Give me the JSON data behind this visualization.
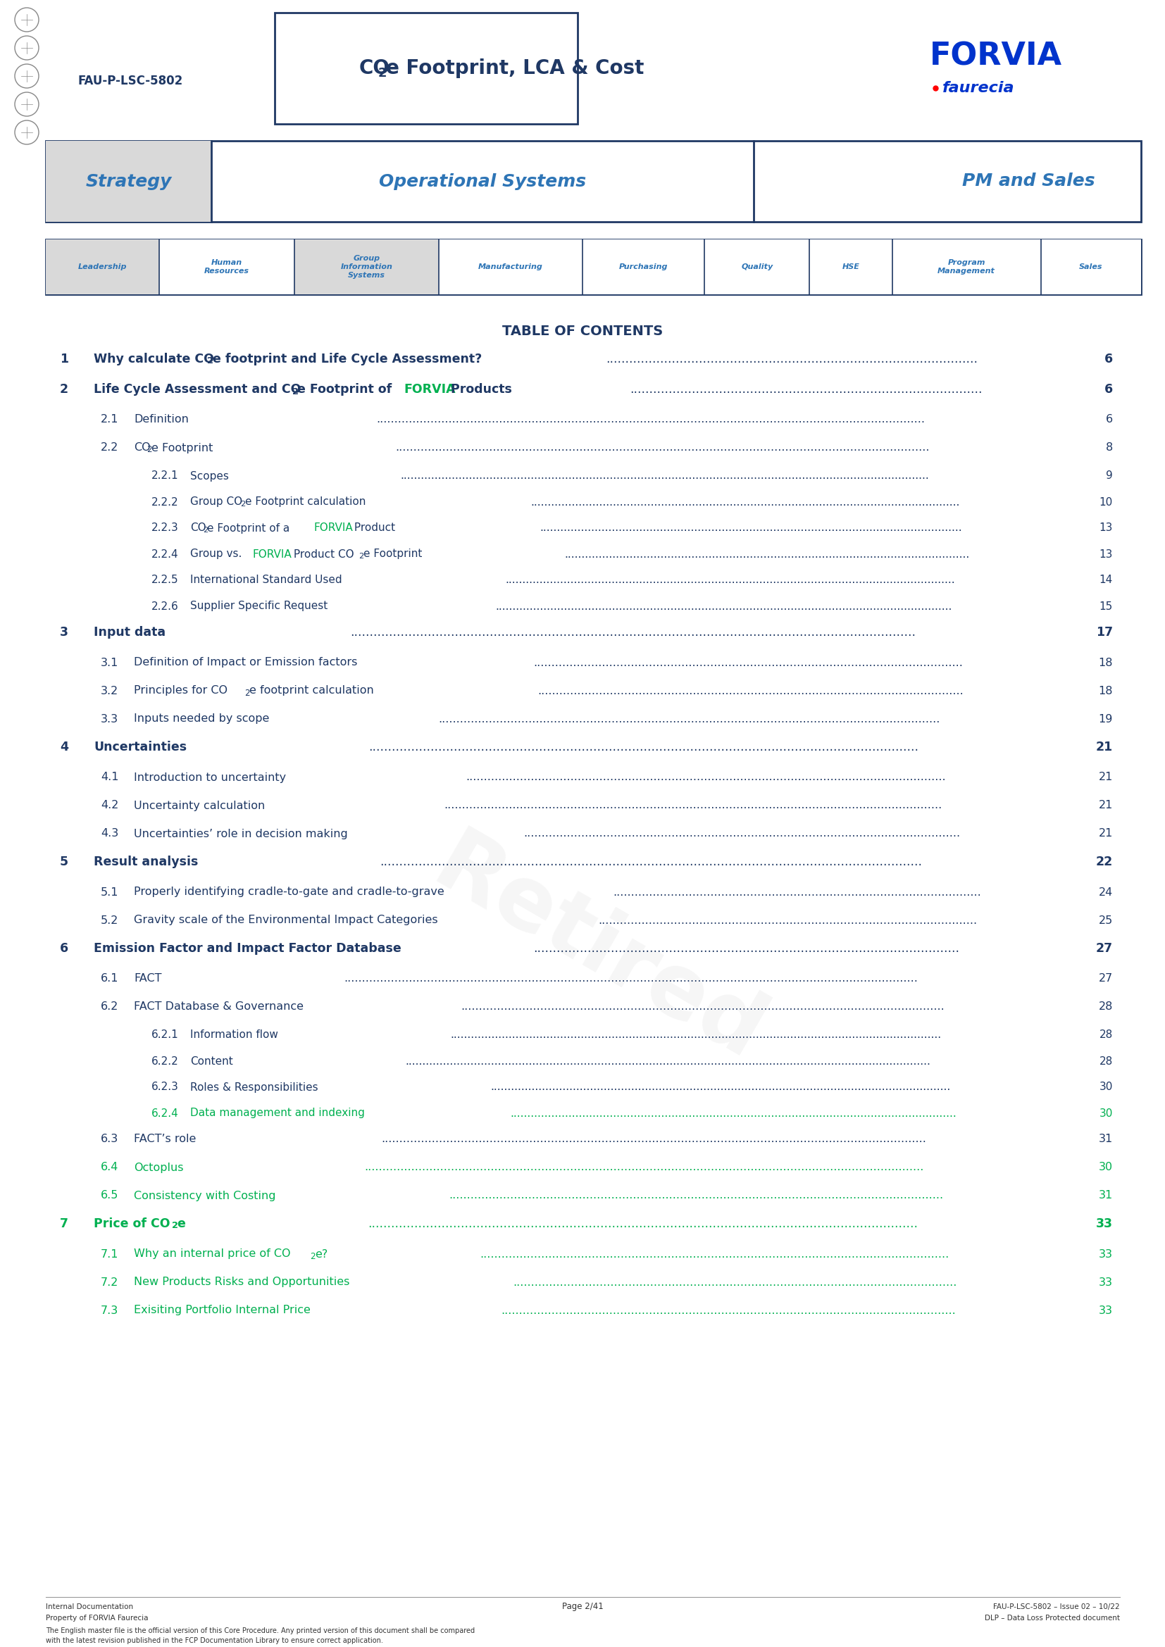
{
  "doc_id": "FAU-P-LSC-5802",
  "blue_dark": "#1F3864",
  "blue_medium": "#2E75B6",
  "blue_bright": "#1F3864",
  "green_forvia": "#00B050",
  "gray_bg": "#D9D9D9",
  "nav_items": [
    "Leadership",
    "Human\nResources",
    "Group\nInformation\nSystems",
    "Manufacturing",
    "Purchasing",
    "Quality",
    "HSE",
    "Program\nManagement",
    "Sales"
  ],
  "nav_gray": [
    0,
    2
  ],
  "toc_entries": [
    {
      "num": "1",
      "level": 1,
      "parts": [
        {
          "text": "Why calculate CO",
          "sub": "2",
          "after": "e footprint and Life Cycle Assessment?",
          "color": "blue"
        }
      ],
      "page": "6",
      "page_color": "blue"
    },
    {
      "num": "2",
      "level": 1,
      "parts": [
        {
          "text": "Life Cycle Assessment and CO",
          "sub": "2",
          "after": "e Footprint of ",
          "color": "blue"
        },
        {
          "text": "FORVIA",
          "color": "green"
        },
        {
          "text": " Products",
          "color": "blue"
        }
      ],
      "page": "6",
      "page_color": "blue"
    },
    {
      "num": "2.1",
      "level": 2,
      "parts": [
        {
          "text": "Definition",
          "color": "blue"
        }
      ],
      "page": "6",
      "page_color": "blue"
    },
    {
      "num": "2.2",
      "level": 2,
      "parts": [
        {
          "text": "CO",
          "sub": "2",
          "after": "e Footprint",
          "color": "blue"
        }
      ],
      "page": "8",
      "page_color": "blue"
    },
    {
      "num": "2.2.1",
      "level": 3,
      "parts": [
        {
          "text": "Scopes",
          "color": "blue"
        }
      ],
      "page": "9",
      "page_color": "blue"
    },
    {
      "num": "2.2.2",
      "level": 3,
      "parts": [
        {
          "text": "Group CO",
          "sub": "2",
          "after": "e Footprint calculation",
          "color": "blue"
        }
      ],
      "page": "10",
      "page_color": "blue"
    },
    {
      "num": "2.2.3",
      "level": 3,
      "parts": [
        {
          "text": "CO",
          "sub": "2",
          "after": "e Footprint of a ",
          "color": "blue"
        },
        {
          "text": "FORVIA",
          "color": "green"
        },
        {
          "text": " Product",
          "color": "blue"
        }
      ],
      "page": "13",
      "page_color": "blue"
    },
    {
      "num": "2.2.4",
      "level": 3,
      "parts": [
        {
          "text": "Group vs. ",
          "color": "blue"
        },
        {
          "text": "FORVIA",
          "color": "green"
        },
        {
          "text": " Product CO",
          "sub": "2",
          "after": "e Footprint",
          "color": "blue"
        }
      ],
      "page": "13",
      "page_color": "blue"
    },
    {
      "num": "2.2.5",
      "level": 3,
      "parts": [
        {
          "text": "International Standard Used",
          "color": "blue"
        }
      ],
      "page": "14",
      "page_color": "blue"
    },
    {
      "num": "2.2.6",
      "level": 3,
      "parts": [
        {
          "text": "Supplier Specific Request",
          "color": "blue"
        }
      ],
      "page": "15",
      "page_color": "blue"
    },
    {
      "num": "3",
      "level": 1,
      "parts": [
        {
          "text": "Input data",
          "color": "blue"
        }
      ],
      "page": "17",
      "page_color": "blue"
    },
    {
      "num": "3.1",
      "level": 2,
      "parts": [
        {
          "text": "Definition of Impact or Emission factors",
          "color": "blue"
        }
      ],
      "page": "18",
      "page_color": "blue"
    },
    {
      "num": "3.2",
      "level": 2,
      "parts": [
        {
          "text": "Principles for CO",
          "sub": "2",
          "after": "e footprint calculation",
          "color": "blue"
        }
      ],
      "page": "18",
      "page_color": "blue"
    },
    {
      "num": "3.3",
      "level": 2,
      "parts": [
        {
          "text": "Inputs needed by scope",
          "color": "blue"
        }
      ],
      "page": "19",
      "page_color": "blue"
    },
    {
      "num": "4",
      "level": 1,
      "parts": [
        {
          "text": "Uncertainties",
          "color": "blue"
        }
      ],
      "page": "21",
      "page_color": "blue"
    },
    {
      "num": "4.1",
      "level": 2,
      "parts": [
        {
          "text": "Introduction to uncertainty",
          "color": "blue"
        }
      ],
      "page": "21",
      "page_color": "blue"
    },
    {
      "num": "4.2",
      "level": 2,
      "parts": [
        {
          "text": "Uncertainty calculation",
          "color": "blue"
        }
      ],
      "page": "21",
      "page_color": "blue"
    },
    {
      "num": "4.3",
      "level": 2,
      "parts": [
        {
          "text": "Uncertainties’ role in decision making",
          "color": "blue"
        }
      ],
      "page": "21",
      "page_color": "blue"
    },
    {
      "num": "5",
      "level": 1,
      "parts": [
        {
          "text": "Result analysis",
          "color": "blue"
        }
      ],
      "page": "22",
      "page_color": "blue"
    },
    {
      "num": "5.1",
      "level": 2,
      "parts": [
        {
          "text": "Properly identifying cradle-to-gate and cradle-to-grave",
          "color": "blue"
        }
      ],
      "page": "24",
      "page_color": "blue"
    },
    {
      "num": "5.2",
      "level": 2,
      "parts": [
        {
          "text": "Gravity scale of the Environmental Impact Categories",
          "color": "blue"
        }
      ],
      "page": "25",
      "page_color": "blue"
    },
    {
      "num": "6",
      "level": 1,
      "parts": [
        {
          "text": "Emission Factor and Impact Factor Database",
          "color": "blue"
        }
      ],
      "page": "27",
      "page_color": "blue"
    },
    {
      "num": "6.1",
      "level": 2,
      "parts": [
        {
          "text": "FACT",
          "color": "blue"
        }
      ],
      "page": "27",
      "page_color": "blue"
    },
    {
      "num": "6.2",
      "level": 2,
      "parts": [
        {
          "text": "FACT Database & Governance",
          "color": "blue"
        }
      ],
      "page": "28",
      "page_color": "blue"
    },
    {
      "num": "6.2.1",
      "level": 3,
      "parts": [
        {
          "text": "Information flow",
          "color": "blue"
        }
      ],
      "page": "28",
      "page_color": "blue"
    },
    {
      "num": "6.2.2",
      "level": 3,
      "parts": [
        {
          "text": "Content",
          "color": "blue"
        }
      ],
      "page": "28",
      "page_color": "blue"
    },
    {
      "num": "6.2.3",
      "level": 3,
      "parts": [
        {
          "text": "Roles & Responsibilities",
          "color": "blue"
        }
      ],
      "page": "30",
      "page_color": "blue"
    },
    {
      "num": "6.2.4",
      "level": 3,
      "parts": [
        {
          "text": "Data management and indexing",
          "color": "green"
        }
      ],
      "page": "30",
      "page_color": "green"
    },
    {
      "num": "6.3",
      "level": 2,
      "parts": [
        {
          "text": "FACT’s role",
          "color": "blue"
        }
      ],
      "page": "31",
      "page_color": "blue"
    },
    {
      "num": "6.4",
      "level": 2,
      "parts": [
        {
          "text": "Octoplus",
          "color": "green"
        }
      ],
      "page": "30",
      "page_color": "green"
    },
    {
      "num": "6.5",
      "level": 2,
      "parts": [
        {
          "text": "Consistency with Costing",
          "color": "green"
        }
      ],
      "page": "31",
      "page_color": "green"
    },
    {
      "num": "7",
      "level": 1,
      "parts": [
        {
          "text": "Price of CO",
          "sub": "2",
          "after": "e",
          "color": "green"
        }
      ],
      "page": "33",
      "page_color": "green"
    },
    {
      "num": "7.1",
      "level": 2,
      "parts": [
        {
          "text": "Why an internal price of CO",
          "sub": "2",
          "after": "e?",
          "color": "green"
        }
      ],
      "page": "33",
      "page_color": "green"
    },
    {
      "num": "7.2",
      "level": 2,
      "parts": [
        {
          "text": "New Products Risks and Opportunities",
          "color": "green"
        }
      ],
      "page": "33",
      "page_color": "green"
    },
    {
      "num": "7.3",
      "level": 2,
      "parts": [
        {
          "text": "Exisiting Portfolio Internal Price",
          "color": "green"
        }
      ],
      "page": "33",
      "page_color": "green"
    }
  ],
  "footer_left1": "Internal Documentation",
  "footer_left2": "Property of FORVIA Faurecia",
  "footer_center": "Page 2/41",
  "footer_right1": "FAU-P-LSC-5802 – Issue 02 – 10/22",
  "footer_right2": "DLP – Data Loss Protected document",
  "footer_note": "The English master file is the official version of this Core Procedure. Any printed version of this document shall be compared\nwith the latest revision published in the FCP Documentation Library to ensure correct application."
}
